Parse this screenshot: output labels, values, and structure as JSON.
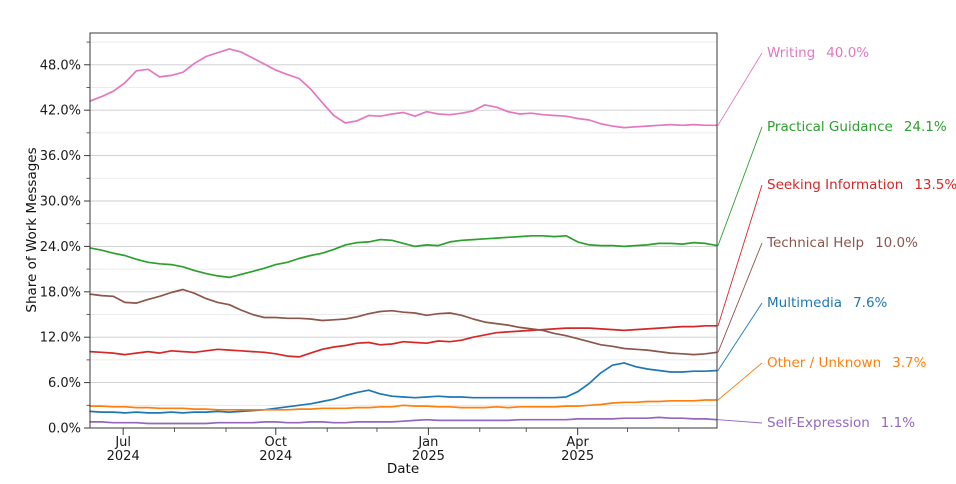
{
  "figure": {
    "ylabel": "Share of Work Messages",
    "xlabel": "Date",
    "y_ticks": [
      {
        "v": 0,
        "label": "0.0%"
      },
      {
        "v": 6,
        "label": "6.0%"
      },
      {
        "v": 12,
        "label": "12.0%"
      },
      {
        "v": 18,
        "label": "18.0%"
      },
      {
        "v": 24,
        "label": "24.0%"
      },
      {
        "v": 30,
        "label": "30.0%"
      },
      {
        "v": 36,
        "label": "36.0%"
      },
      {
        "v": 42,
        "label": "42.0%"
      },
      {
        "v": 48,
        "label": "48.0%"
      }
    ],
    "y_minor": [
      3,
      9,
      15,
      21,
      27,
      33,
      39,
      45,
      51
    ],
    "x_major_ticks": [
      {
        "date": "2024-07-01",
        "line1": "Jul",
        "line2": "2024"
      },
      {
        "date": "2024-10-01",
        "line1": "Oct",
        "line2": "2024"
      },
      {
        "date": "2025-01-01",
        "line1": "Jan",
        "line2": "2025"
      },
      {
        "date": "2025-04-01",
        "line1": "Apr",
        "line2": "2025"
      }
    ],
    "x_minor_ticks": [
      "2024-08-01",
      "2024-09-01",
      "2024-11-01",
      "2024-12-01",
      "2025-02-01",
      "2025-03-01",
      "2025-05-01",
      "2025-06-01"
    ]
  },
  "chart_data": {
    "type": "line",
    "title": "",
    "xlabel": "Date",
    "ylabel": "Share of Work Messages",
    "ylim": [
      0,
      52.2
    ],
    "grid": "horizontal, major every 6%, minor every 3%",
    "legend_position": "right, color-matched labels with leader lines",
    "x_axis": {
      "start_date": "2024-06-11",
      "step_days": 7,
      "points": 55,
      "end_date": "2025-06-24"
    },
    "series": [
      {
        "name": "Writing",
        "value_label": "40.0%",
        "end_value": 40.0,
        "color": "#e377c2",
        "values": [
          43.2,
          43.8,
          44.5,
          45.6,
          47.2,
          47.4,
          46.4,
          46.6,
          47.0,
          48.2,
          49.1,
          49.6,
          50.1,
          49.7,
          48.9,
          48.1,
          47.3,
          46.7,
          46.2,
          44.8,
          43.0,
          41.3,
          40.3,
          40.6,
          41.3,
          41.2,
          41.5,
          41.7,
          41.2,
          41.8,
          41.5,
          41.4,
          41.6,
          41.9,
          42.7,
          42.4,
          41.8,
          41.5,
          41.6,
          41.4,
          41.3,
          41.2,
          40.9,
          40.7,
          40.2,
          39.9,
          39.7,
          39.8,
          39.9,
          40.0,
          40.1,
          40.0,
          40.1,
          40.0,
          40.0
        ]
      },
      {
        "name": "Practical Guidance",
        "value_label": "24.1%",
        "end_value": 24.1,
        "color": "#2ca02c",
        "values": [
          23.8,
          23.5,
          23.1,
          22.8,
          22.3,
          21.9,
          21.7,
          21.6,
          21.3,
          20.8,
          20.4,
          20.1,
          19.9,
          20.3,
          20.7,
          21.1,
          21.6,
          21.9,
          22.4,
          22.8,
          23.1,
          23.6,
          24.2,
          24.5,
          24.6,
          24.9,
          24.8,
          24.4,
          24.0,
          24.2,
          24.1,
          24.6,
          24.8,
          24.9,
          25.0,
          25.1,
          25.2,
          25.3,
          25.4,
          25.4,
          25.3,
          25.4,
          24.6,
          24.2,
          24.1,
          24.1,
          24.0,
          24.1,
          24.2,
          24.4,
          24.4,
          24.3,
          24.5,
          24.4,
          24.1
        ]
      },
      {
        "name": "Seeking Information",
        "value_label": "13.5%",
        "end_value": 13.5,
        "color": "#d62728",
        "values": [
          10.1,
          10.0,
          9.9,
          9.7,
          9.9,
          10.1,
          9.9,
          10.2,
          10.1,
          10.0,
          10.2,
          10.4,
          10.3,
          10.2,
          10.1,
          10.0,
          9.8,
          9.5,
          9.4,
          9.9,
          10.4,
          10.7,
          10.9,
          11.2,
          11.3,
          11.0,
          11.1,
          11.4,
          11.3,
          11.2,
          11.5,
          11.4,
          11.6,
          12.0,
          12.3,
          12.6,
          12.7,
          12.8,
          12.9,
          13.0,
          13.1,
          13.2,
          13.2,
          13.2,
          13.1,
          13.0,
          12.9,
          13.0,
          13.1,
          13.2,
          13.3,
          13.4,
          13.4,
          13.5,
          13.5
        ]
      },
      {
        "name": "Technical Help",
        "value_label": "10.0%",
        "end_value": 10.0,
        "color": "#8c564b",
        "values": [
          17.7,
          17.5,
          17.4,
          16.6,
          16.5,
          17.0,
          17.4,
          17.9,
          18.3,
          17.8,
          17.1,
          16.6,
          16.3,
          15.6,
          15.0,
          14.6,
          14.6,
          14.5,
          14.5,
          14.4,
          14.2,
          14.3,
          14.4,
          14.7,
          15.1,
          15.4,
          15.5,
          15.3,
          15.2,
          14.9,
          15.1,
          15.2,
          14.9,
          14.4,
          14.0,
          13.8,
          13.6,
          13.3,
          13.1,
          12.9,
          12.5,
          12.2,
          11.8,
          11.4,
          11.0,
          10.8,
          10.5,
          10.4,
          10.3,
          10.1,
          9.9,
          9.8,
          9.7,
          9.8,
          10.0
        ]
      },
      {
        "name": "Multimedia",
        "value_label": "7.6%",
        "end_value": 7.6,
        "color": "#1f77b4",
        "values": [
          2.2,
          2.1,
          2.1,
          2.0,
          2.1,
          2.0,
          2.0,
          2.1,
          2.0,
          2.1,
          2.1,
          2.2,
          2.1,
          2.2,
          2.3,
          2.4,
          2.6,
          2.8,
          3.0,
          3.2,
          3.5,
          3.8,
          4.3,
          4.7,
          5.0,
          4.5,
          4.2,
          4.1,
          4.0,
          4.1,
          4.2,
          4.1,
          4.1,
          4.0,
          4.0,
          4.0,
          4.0,
          4.0,
          4.0,
          4.0,
          4.0,
          4.1,
          4.8,
          5.9,
          7.3,
          8.3,
          8.6,
          8.1,
          7.8,
          7.6,
          7.4,
          7.4,
          7.5,
          7.5,
          7.6
        ]
      },
      {
        "name": "Other / Unknown",
        "value_label": "3.7%",
        "end_value": 3.7,
        "color": "#ff7f0e",
        "values": [
          2.9,
          2.9,
          2.8,
          2.8,
          2.7,
          2.7,
          2.6,
          2.6,
          2.6,
          2.5,
          2.5,
          2.4,
          2.4,
          2.4,
          2.4,
          2.4,
          2.4,
          2.4,
          2.5,
          2.5,
          2.6,
          2.6,
          2.6,
          2.7,
          2.7,
          2.8,
          2.8,
          3.0,
          2.9,
          2.9,
          2.8,
          2.8,
          2.7,
          2.7,
          2.7,
          2.8,
          2.7,
          2.8,
          2.8,
          2.8,
          2.8,
          2.9,
          2.9,
          3.0,
          3.1,
          3.3,
          3.4,
          3.4,
          3.5,
          3.5,
          3.6,
          3.6,
          3.6,
          3.7,
          3.7
        ]
      },
      {
        "name": "Self-Expression",
        "value_label": "1.1%",
        "end_value": 1.1,
        "color": "#9467bd",
        "values": [
          0.8,
          0.8,
          0.7,
          0.7,
          0.7,
          0.6,
          0.6,
          0.6,
          0.6,
          0.6,
          0.6,
          0.7,
          0.7,
          0.7,
          0.7,
          0.8,
          0.8,
          0.7,
          0.7,
          0.8,
          0.8,
          0.7,
          0.7,
          0.8,
          0.8,
          0.8,
          0.8,
          0.9,
          1.0,
          1.1,
          1.0,
          1.0,
          1.0,
          1.0,
          1.0,
          1.0,
          1.0,
          1.1,
          1.1,
          1.1,
          1.1,
          1.1,
          1.2,
          1.2,
          1.2,
          1.2,
          1.3,
          1.3,
          1.3,
          1.4,
          1.3,
          1.3,
          1.2,
          1.2,
          1.1
        ]
      }
    ]
  }
}
